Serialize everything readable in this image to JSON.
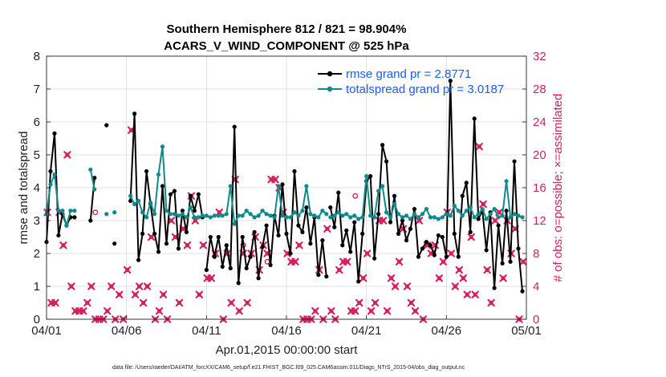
{
  "chart_data": {
    "type": "line",
    "title_line1": "Southern Hemisphere 812 / 821 = 98.904%",
    "title_line2": "ACARS_V_WIND_COMPONENT @ 525 hPa",
    "xlabel": "Apr.01,2015 00:00:00 start",
    "ylabel_left": "rmse and totalspread",
    "ylabel_right": "# of obs: o=possible; ×=assimilated",
    "footnote": "data file: /Users/raeder/DAI/ATM_forcXX/CAM6_setup/f.e21.FHIST_BGC.f09_025.CAM6assim.011/Diags_NTrS_2015-04/obs_diag_output.nc",
    "xlim": [
      0,
      30
    ],
    "ylim_left": [
      0,
      8
    ],
    "ylim_right": [
      0,
      32
    ],
    "x_ticks": [
      0,
      5,
      10,
      15,
      20,
      25,
      30
    ],
    "x_tick_labels": [
      "04/01",
      "04/06",
      "04/11",
      "04/16",
      "04/21",
      "04/26",
      "05/01"
    ],
    "y_ticks_left": [
      0,
      1,
      2,
      3,
      4,
      5,
      6,
      7,
      8
    ],
    "y_ticks_right": [
      0,
      4,
      8,
      12,
      16,
      20,
      24,
      28,
      32
    ],
    "grid": true,
    "colors": {
      "rmse": "#000000",
      "spread": "#0f8a8a",
      "obs": "#d6205e",
      "legend_text": "#1a5ff0"
    },
    "legend": [
      {
        "label": "rmse grand pr = 2.8771",
        "color": "#000000",
        "marker": "dot"
      },
      {
        "label": "totalspread grand pr = 3.0187",
        "color": "#0f8a8a",
        "marker": "dot"
      }
    ],
    "rmse_segments": [
      {
        "x": [
          0.0,
          0.25,
          0.5,
          0.75,
          1.0,
          1.25,
          1.5,
          1.75
        ],
        "y": [
          2.35,
          4.5,
          5.65,
          2.55,
          3.2,
          2.85,
          3.1,
          3.1
        ]
      },
      {
        "x": [
          2.75,
          3.0
        ],
        "y": [
          3.0,
          4.3
        ]
      },
      {
        "x": [
          3.75
        ],
        "y": [
          5.9
        ]
      },
      {
        "x": [
          4.25
        ],
        "y": [
          2.3
        ]
      },
      {
        "x": [
          5.25,
          5.5,
          5.75,
          6.0,
          6.25,
          6.5,
          6.75,
          7.0,
          7.25,
          7.5,
          7.75,
          8.0,
          8.25,
          8.5,
          8.75,
          9.0,
          9.25,
          9.5,
          9.75
        ],
        "y": [
          3.6,
          6.25,
          1.8,
          2.6,
          4.5,
          3.5,
          2.6,
          2.05,
          4.05,
          2.3,
          3.8,
          3.9,
          2.15,
          3.3,
          2.65,
          3.75,
          3.3,
          3.8,
          3.1
        ]
      },
      {
        "x": [
          10.0,
          10.25,
          10.5,
          10.75,
          11.0,
          11.25,
          11.5,
          11.75,
          12.0,
          12.25,
          12.5,
          12.75,
          13.0,
          13.25,
          13.5,
          13.75,
          14.0,
          14.25,
          14.5,
          14.75,
          15.0,
          15.25,
          15.5,
          15.75,
          16.0,
          16.25,
          16.5,
          16.75,
          17.0,
          17.25,
          17.5
        ],
        "y": [
          1.5,
          2.5,
          1.9,
          2.5,
          1.6,
          2.25,
          1.55,
          5.85,
          1.1,
          2.5,
          1.55,
          1.9,
          2.65,
          1.25,
          2.2,
          2.85,
          1.65,
          3.15,
          2.55,
          4.1,
          2.6,
          2.0,
          4.5,
          2.85,
          2.65,
          3.4,
          2.3,
          3.1,
          1.35,
          2.4,
          1.3
        ]
      },
      {
        "x": [
          17.75,
          18.0,
          18.25,
          18.5,
          18.75,
          19.0,
          19.25,
          19.5,
          19.75,
          20.0,
          20.25,
          20.5,
          20.75,
          21.0,
          21.25,
          21.5,
          21.75,
          22.0,
          22.25,
          22.5,
          22.75,
          23.0,
          23.25,
          23.5,
          23.75,
          24.0,
          24.25,
          24.5,
          24.75,
          25.0,
          25.25,
          25.5,
          25.75,
          26.0,
          26.25,
          26.5,
          26.75,
          27.0,
          27.25,
          27.5,
          27.75,
          28.0,
          28.25,
          28.5,
          28.75,
          29.0,
          29.25,
          29.5,
          29.75
        ],
        "y": [
          3.4,
          2.8,
          3.85,
          2.25,
          2.7,
          2.05,
          2.95,
          1.15,
          2.6,
          4.2,
          4.35,
          1.85,
          3.2,
          5.3,
          4.8,
          2.95,
          3.75,
          2.6,
          3.0,
          2.4,
          2.75,
          3.35,
          1.9,
          2.15,
          2.35,
          2.25,
          1.95,
          2.55,
          2.5,
          1.9,
          7.25,
          2.6,
          1.9,
          3.75,
          4.15,
          2.65,
          6.1,
          3.05,
          3.3,
          2.1,
          3.25,
          0.95,
          2.85,
          1.7,
          3.3,
          1.75,
          4.8,
          2.15,
          0.85
        ]
      }
    ],
    "spread_segments": [
      {
        "x": [
          0.0,
          0.25,
          0.5,
          0.75,
          1.0,
          1.25,
          1.5,
          1.75
        ],
        "y": [
          3.2,
          4.1,
          4.4,
          3.3,
          3.3,
          2.85,
          3.3,
          3.3
        ]
      },
      {
        "x": [
          2.75,
          3.0
        ],
        "y": [
          4.55,
          3.95
        ]
      },
      {
        "x": [
          3.75
        ],
        "y": [
          3.2
        ]
      },
      {
        "x": [
          4.25
        ],
        "y": [
          3.25
        ]
      },
      {
        "x": [
          5.25,
          5.5,
          5.75,
          6.0,
          6.25,
          6.5,
          6.75,
          7.0,
          7.25,
          7.5,
          7.75,
          8.0,
          8.25,
          8.5,
          8.75,
          9.0,
          9.25,
          9.5,
          9.75
        ],
        "y": [
          3.75,
          3.5,
          3.6,
          3.25,
          3.1,
          3.55,
          3.2,
          4.4,
          5.25,
          3.3,
          3.2,
          3.2,
          3.15,
          3.2,
          3.1,
          3.4,
          3.1,
          3.1,
          3.15
        ]
      },
      {
        "x": [
          10.0,
          10.25,
          10.5,
          10.75,
          11.0,
          11.25,
          11.5,
          11.75,
          12.0,
          12.25,
          12.5,
          12.75,
          13.0,
          13.25,
          13.5,
          13.75,
          14.0,
          14.25,
          14.5,
          14.75,
          15.0,
          15.25,
          15.5,
          15.75,
          16.0,
          16.25,
          16.5,
          16.75,
          17.0,
          17.25,
          17.5
        ],
        "y": [
          3.15,
          3.1,
          3.15,
          3.15,
          3.15,
          3.2,
          4.05,
          2.9,
          3.15,
          3.15,
          3.3,
          3.2,
          3.1,
          3.15,
          3.3,
          3.2,
          3.15,
          3.1,
          4.05,
          3.15,
          3.1,
          3.1,
          3.25,
          3.15,
          3.3,
          4.05,
          3.2,
          3.15,
          3.1,
          3.3,
          3.2
        ]
      },
      {
        "x": [
          17.75,
          18.0,
          18.25,
          18.5,
          18.75,
          19.0,
          19.25,
          19.5,
          19.75,
          20.0,
          20.25,
          20.5,
          20.75,
          21.0,
          21.25,
          21.5,
          21.75,
          22.0,
          22.25,
          22.5,
          22.75,
          23.0,
          23.25,
          23.5,
          23.75,
          24.0,
          24.25,
          24.5,
          24.75,
          25.0,
          25.25,
          25.5,
          25.75,
          26.0,
          26.25,
          26.5,
          26.75,
          27.0,
          27.25,
          27.5,
          27.75,
          28.0,
          28.25,
          28.5,
          28.75,
          29.0,
          29.25,
          29.5,
          29.75
        ],
        "y": [
          3.1,
          3.15,
          3.25,
          3.15,
          3.2,
          3.1,
          3.15,
          3.05,
          3.1,
          4.35,
          3.15,
          3.1,
          3.9,
          4.05,
          3.25,
          3.1,
          3.5,
          3.2,
          3.1,
          3.15,
          3.05,
          3.2,
          3.1,
          3.2,
          3.35,
          3.1,
          3.1,
          3.05,
          3.1,
          3.2,
          3.15,
          3.45,
          3.3,
          3.15,
          3.3,
          3.4,
          3.1,
          3.2,
          3.35,
          3.05,
          3.2,
          3.35,
          3.1,
          3.15,
          4.2,
          3.1,
          3.2,
          3.15,
          3.1
        ]
      }
    ],
    "obs_assimilated": {
      "x": [
        0.05,
        0.3,
        0.55,
        0.8,
        1.05,
        1.3,
        1.55,
        1.8,
        2.05,
        2.3,
        2.55,
        2.8,
        3.05,
        3.3,
        3.55,
        3.8,
        4.05,
        4.3,
        4.55,
        4.8,
        5.05,
        5.3,
        5.55,
        5.8,
        6.05,
        6.3,
        6.55,
        6.8,
        7.05,
        7.3,
        7.55,
        7.8,
        8.05,
        8.3,
        8.55,
        8.8,
        9.05,
        9.3,
        9.55,
        9.8,
        10.05,
        10.3,
        10.55,
        10.8,
        11.05,
        11.3,
        11.55,
        11.8,
        12.05,
        12.3,
        12.55,
        12.8,
        13.05,
        13.3,
        13.55,
        13.8,
        14.05,
        14.3,
        14.55,
        14.8,
        15.05,
        15.3,
        15.55,
        15.8,
        16.05,
        16.3,
        16.55,
        16.8,
        17.05,
        17.3,
        17.55,
        17.8,
        18.05,
        18.3,
        18.55,
        18.8,
        19.05,
        19.3,
        19.55,
        19.8,
        20.05,
        20.3,
        20.55,
        20.8,
        21.05,
        21.3,
        21.55,
        21.8,
        22.05,
        22.3,
        22.55,
        22.8,
        23.05,
        23.3,
        23.55,
        23.8,
        24.05,
        24.3,
        24.55,
        24.8,
        25.05,
        25.3,
        25.55,
        25.8,
        26.05,
        26.3,
        26.55,
        26.8,
        27.05,
        27.3,
        27.55,
        27.8,
        28.05,
        28.3,
        28.55,
        28.8,
        29.05,
        29.3,
        29.55,
        29.8
      ],
      "y": [
        13,
        2,
        2,
        13,
        9,
        20,
        4,
        1,
        1,
        1,
        2,
        4,
        0,
        0,
        0,
        1,
        4,
        0,
        3,
        0,
        6,
        23,
        3,
        4,
        2,
        4,
        10,
        0,
        1,
        3,
        0,
        12,
        10,
        2,
        11,
        9,
        15,
        12,
        3,
        9,
        5,
        5,
        8,
        13,
        0,
        8,
        2,
        17,
        1,
        8,
        2,
        8,
        10,
        6,
        9,
        8,
        17,
        17,
        16,
        13,
        8,
        7,
        7,
        9,
        0,
        0,
        0,
        1,
        6,
        0,
        11,
        1,
        0,
        6,
        7,
        7,
        1,
        1,
        2,
        5,
        8,
        1,
        2,
        12,
        12,
        1,
        5,
        4,
        7,
        11,
        4,
        2,
        1,
        12,
        0,
        9,
        8,
        9,
        5,
        7,
        13,
        8,
        4,
        6,
        5,
        3,
        10,
        3,
        21,
        14,
        6,
        2,
        12,
        13,
        5,
        12,
        8,
        11,
        0,
        7
      ]
    },
    "obs_possible_only": {
      "x": [
        3.05,
        12.3,
        13.8,
        19.3
      ],
      "y": [
        13,
        9,
        7,
        15
      ]
    }
  }
}
